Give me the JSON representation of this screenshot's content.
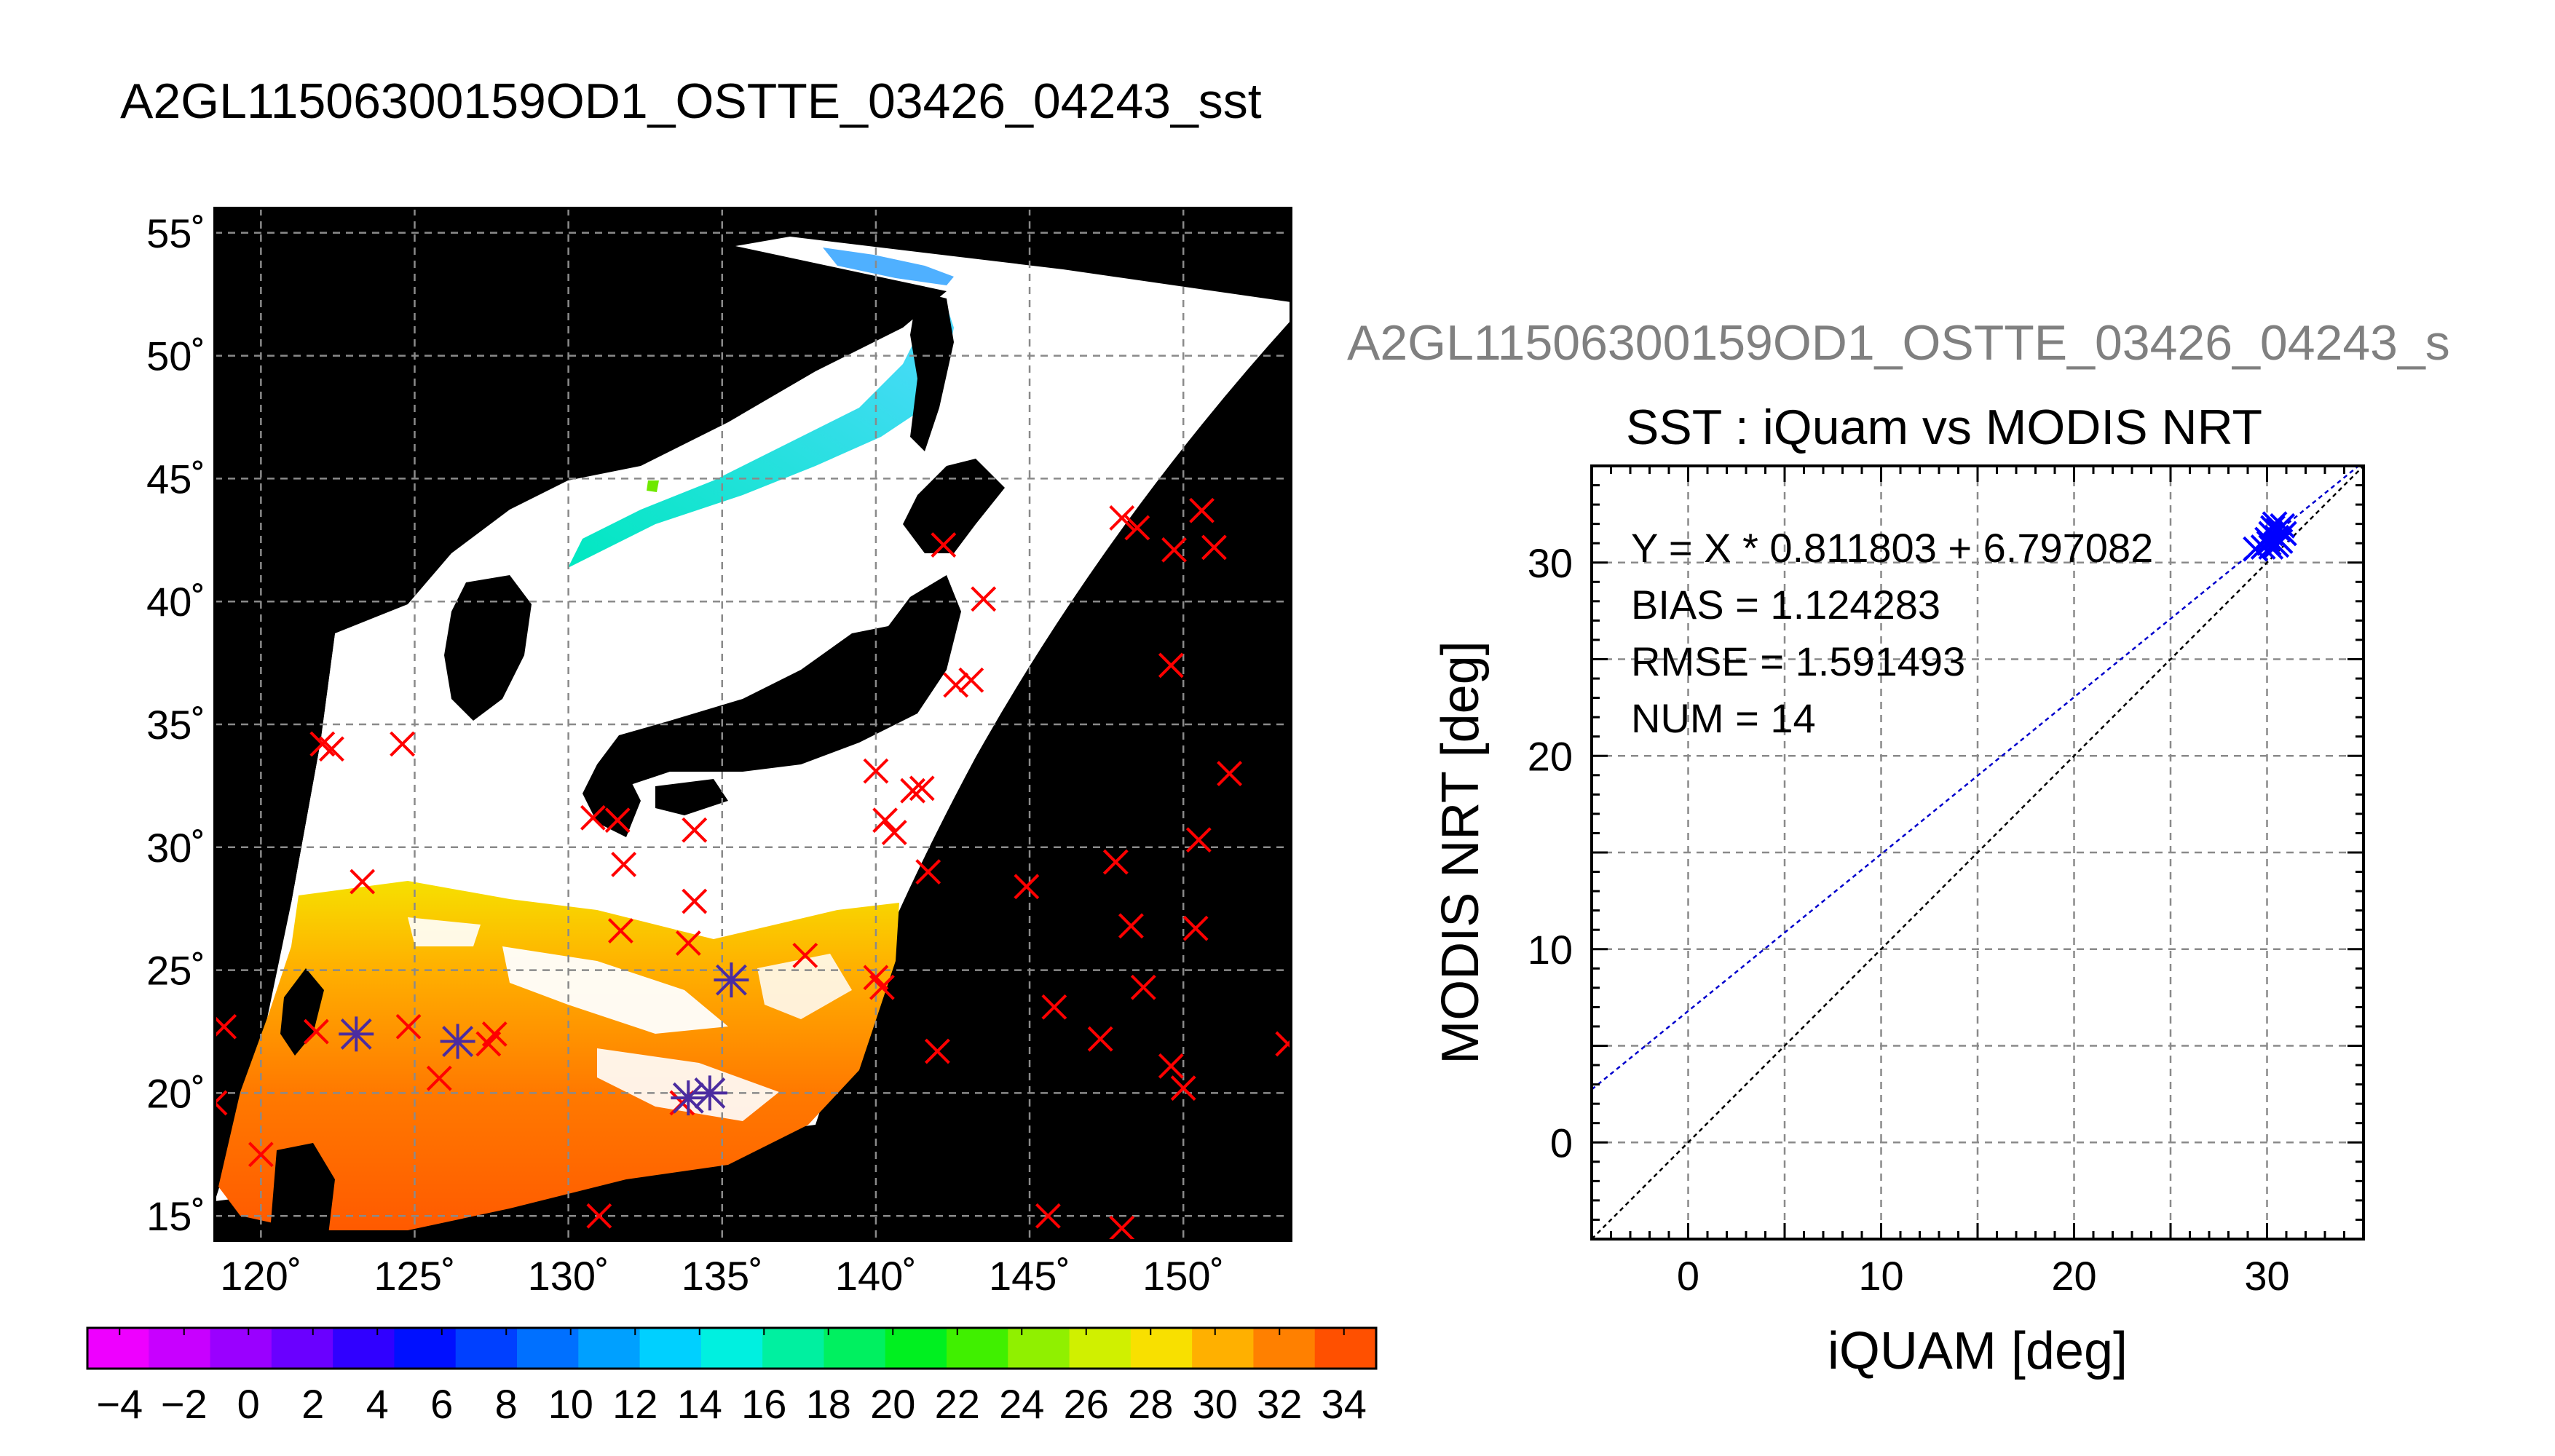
{
  "map": {
    "title": "A2GL11506300159OD1_OSTTE_03426_04243_sst",
    "lon_ticks": [
      "120˚",
      "125˚",
      "130˚",
      "135˚",
      "140˚",
      "145˚",
      "150˚"
    ],
    "lat_ticks": [
      "55˚",
      "50˚",
      "45˚",
      "40˚",
      "35˚",
      "30˚",
      "25˚",
      "20˚",
      "15˚"
    ],
    "lon_range": [
      118.5,
      153.5
    ],
    "lat_range": [
      14,
      56
    ],
    "red_marks": [
      [
        122,
        34.2
      ],
      [
        122.3,
        34
      ],
      [
        124.6,
        34.2
      ],
      [
        123.3,
        28.6
      ],
      [
        121.8,
        22.5
      ],
      [
        124.8,
        22.7
      ],
      [
        127.6,
        22.4
      ],
      [
        127.4,
        22
      ],
      [
        125.8,
        20.6
      ],
      [
        120,
        17.5
      ],
      [
        118.8,
        22.7
      ],
      [
        118.5,
        19.6
      ],
      [
        130.8,
        31.2
      ],
      [
        131.6,
        31.1
      ],
      [
        131.8,
        29.3
      ],
      [
        131.7,
        26.6
      ],
      [
        134.1,
        30.7
      ],
      [
        134.1,
        27.8
      ],
      [
        133.9,
        26.1
      ],
      [
        137.7,
        25.6
      ],
      [
        131,
        15
      ],
      [
        133.7,
        19.6
      ],
      [
        140,
        33.1
      ],
      [
        140.3,
        31.1
      ],
      [
        140.6,
        30.6
      ],
      [
        141.2,
        32.3
      ],
      [
        141.5,
        32.4
      ],
      [
        141.7,
        29
      ],
      [
        140.2,
        24.3
      ],
      [
        140,
        24.7
      ],
      [
        142,
        21.7
      ],
      [
        142.2,
        42.3
      ],
      [
        143.5,
        40.1
      ],
      [
        142.6,
        36.6
      ],
      [
        143.1,
        36.8
      ],
      [
        144.9,
        28.4
      ],
      [
        145.8,
        23.5
      ],
      [
        145.6,
        15
      ],
      [
        147.3,
        22.2
      ],
      [
        147.8,
        29.4
      ],
      [
        148,
        14.5
      ],
      [
        148,
        43.4
      ],
      [
        148.5,
        43
      ],
      [
        148.3,
        26.8
      ],
      [
        148.7,
        24.3
      ],
      [
        149.7,
        42.1
      ],
      [
        150.6,
        43.7
      ],
      [
        151,
        42.2
      ],
      [
        149.6,
        37.4
      ],
      [
        150.5,
        30.3
      ],
      [
        150.4,
        26.7
      ],
      [
        149.6,
        21.1
      ],
      [
        150,
        20.2
      ],
      [
        151.5,
        33
      ],
      [
        153.4,
        22
      ]
    ],
    "purple_marks": [
      [
        123.1,
        22.4
      ],
      [
        126.4,
        22.1
      ],
      [
        133.9,
        19.8
      ],
      [
        134.6,
        20
      ],
      [
        135.3,
        24.6
      ]
    ]
  },
  "colorbar": {
    "labels": [
      "−4",
      "−2",
      "0",
      "2",
      "4",
      "6",
      "8",
      "10",
      "12",
      "14",
      "16",
      "18",
      "20",
      "22",
      "24",
      "26",
      "28",
      "30",
      "32",
      "34"
    ],
    "range": [
      -5,
      35
    ]
  },
  "scatter": {
    "header": "A2GL11506300159OD1_OSTTE_03426_04243_s",
    "title": "SST : iQuam vs MODIS NRT",
    "stats": [
      "Y = X * 0.811803 + 6.797082",
      "BIAS = 1.124283",
      "RMSE = 1.591493",
      "NUM = 14"
    ]
  },
  "chart_data": {
    "type": "scatter",
    "title": "SST : iQuam vs MODIS NRT",
    "xlabel": "iQUAM [deg]",
    "ylabel": "MODIS NRT [deg]",
    "xlim": [
      -5,
      35
    ],
    "ylim": [
      -5,
      35
    ],
    "xticks": [
      0,
      10,
      20,
      30
    ],
    "yticks": [
      0,
      10,
      20,
      30
    ],
    "grid": true,
    "fit": {
      "slope": 0.811803,
      "intercept": 6.797082
    },
    "points": [
      {
        "x": 29.4,
        "y": 30.7
      },
      {
        "x": 29.8,
        "y": 30.8
      },
      {
        "x": 30.0,
        "y": 31.2
      },
      {
        "x": 30.1,
        "y": 31.0
      },
      {
        "x": 30.2,
        "y": 31.5
      },
      {
        "x": 30.3,
        "y": 31.8
      },
      {
        "x": 30.4,
        "y": 32.0
      },
      {
        "x": 30.5,
        "y": 31.3
      },
      {
        "x": 30.5,
        "y": 30.9
      },
      {
        "x": 30.6,
        "y": 31.7
      },
      {
        "x": 30.7,
        "y": 31.1
      },
      {
        "x": 30.8,
        "y": 31.9
      },
      {
        "x": 30.2,
        "y": 30.8
      },
      {
        "x": 30.9,
        "y": 31.5
      }
    ]
  },
  "colors": {
    "marker_red": "#ff0000",
    "marker_purple": "#4b2ca0",
    "scatter_blue": "#0000ff",
    "fit_line": "#0000cc"
  }
}
